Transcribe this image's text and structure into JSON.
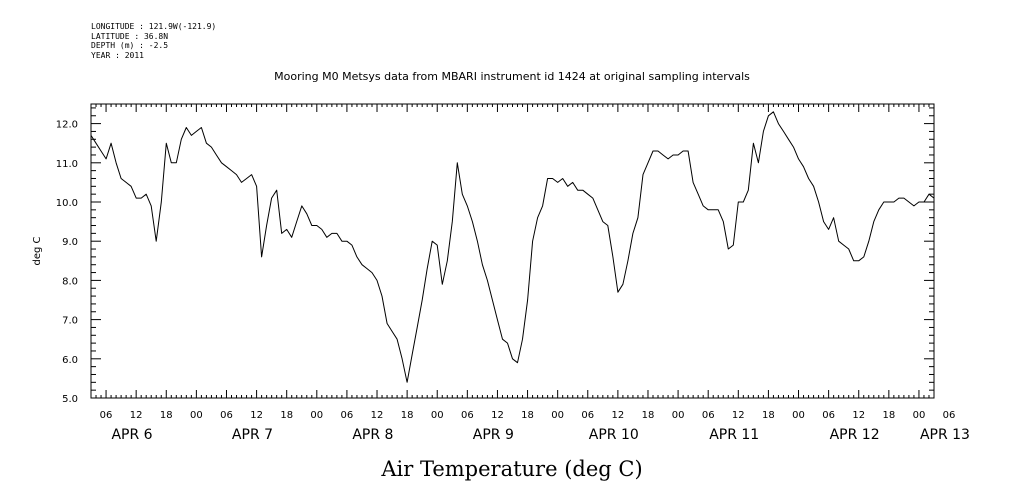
{
  "header": {
    "longitude": "LONGITUDE : 121.9W(-121.9)",
    "latitude": "LATITUDE : 36.8N",
    "depth": "DEPTH (m) : -2.5",
    "year": "YEAR : 2011"
  },
  "chart_data": {
    "type": "line",
    "title": "Mooring M0 Metsys data from MBARI instrument id 1424 at original sampling intervals",
    "ylabel": "deg C",
    "xlabel": "",
    "footer_label": "Air Temperature (deg C)",
    "ylim": [
      5.0,
      12.5
    ],
    "yticks": [
      "5.0",
      "6.0",
      "7.0",
      "8.0",
      "9.0",
      "10.0",
      "11.0",
      "12.0"
    ],
    "x_unit": "hours since APR 6 00:00",
    "xlim": [
      3,
      171
    ],
    "hour_labels": [
      "06",
      "12",
      "18",
      "00",
      "06",
      "12",
      "18",
      "00",
      "06",
      "12",
      "18",
      "00",
      "06",
      "12",
      "18",
      "00",
      "06",
      "12",
      "18",
      "00",
      "06",
      "12",
      "18",
      "00",
      "06",
      "12",
      "18",
      "00",
      "06"
    ],
    "day_labels": [
      {
        "text": "APR  6",
        "hour": 6
      },
      {
        "text": "APR  7",
        "hour": 30
      },
      {
        "text": "APR  8",
        "hour": 54
      },
      {
        "text": "APR  9",
        "hour": 78
      },
      {
        "text": "APR 10",
        "hour": 102
      },
      {
        "text": "APR 11",
        "hour": 126
      },
      {
        "text": "APR 12",
        "hour": 150
      },
      {
        "text": "APR 13",
        "hour": 168
      }
    ],
    "series": [
      {
        "x": [
          3,
          4,
          5,
          6,
          7,
          8,
          9,
          10,
          11,
          12,
          13,
          14,
          15,
          16,
          17,
          18,
          19,
          20,
          21,
          22,
          23,
          24,
          25,
          26,
          27,
          28,
          29,
          30,
          31,
          32,
          33,
          34,
          35,
          36,
          37,
          38,
          39,
          40,
          41,
          42,
          43,
          44,
          45,
          46,
          47,
          48,
          49,
          50,
          51,
          52,
          53,
          54,
          55,
          56,
          57,
          58,
          59,
          60,
          61,
          62,
          63,
          64,
          65,
          66,
          67,
          68,
          69,
          70,
          71,
          72,
          73,
          74,
          75,
          76,
          77,
          78,
          79,
          80,
          81,
          82,
          83,
          84,
          85,
          86,
          87,
          88,
          89,
          90,
          91,
          92,
          93,
          94,
          95,
          96,
          97,
          98,
          99,
          100,
          101,
          102,
          103,
          104,
          105,
          106,
          107,
          108,
          109,
          110,
          111,
          112,
          113,
          114,
          115,
          116,
          117,
          118,
          119,
          120,
          121,
          122,
          123,
          124,
          125,
          126,
          127,
          128,
          129,
          130,
          131,
          132,
          133,
          134,
          135,
          136,
          137,
          138,
          139,
          140,
          141,
          142,
          143,
          144,
          145,
          146,
          147,
          148,
          149,
          150,
          151,
          152,
          153,
          154,
          155,
          156,
          157,
          158,
          159,
          160,
          161,
          162,
          163,
          164,
          165,
          166,
          167,
          168,
          169,
          170,
          171
        ],
        "values": [
          11.7,
          11.5,
          11.3,
          11.1,
          11.5,
          11.0,
          10.6,
          10.5,
          10.4,
          10.1,
          10.1,
          10.2,
          9.9,
          9.0,
          10.0,
          11.5,
          11.0,
          11.0,
          11.6,
          11.9,
          11.7,
          11.8,
          11.9,
          11.5,
          11.4,
          11.2,
          11.0,
          10.9,
          10.8,
          10.7,
          10.5,
          10.6,
          10.7,
          10.4,
          8.6,
          9.4,
          10.1,
          10.3,
          9.2,
          9.3,
          9.1,
          9.5,
          9.9,
          9.7,
          9.4,
          9.4,
          9.3,
          9.1,
          9.2,
          9.2,
          9.0,
          9.0,
          8.9,
          8.6,
          8.4,
          8.3,
          8.2,
          8.0,
          7.6,
          6.9,
          6.7,
          6.5,
          6.0,
          5.4,
          6.1,
          6.8,
          7.5,
          8.3,
          9.0,
          8.9,
          7.9,
          8.5,
          9.5,
          11.0,
          10.2,
          9.9,
          9.5,
          9.0,
          8.4,
          8.0,
          7.5,
          7.0,
          6.5,
          6.4,
          6.0,
          5.9,
          6.5,
          7.5,
          9.0,
          9.6,
          9.9,
          10.6,
          10.6,
          10.5,
          10.6,
          10.4,
          10.5,
          10.3,
          10.3,
          10.2,
          10.1,
          9.8,
          9.5,
          9.4,
          8.6,
          7.7,
          7.9,
          8.5,
          9.2,
          9.6,
          10.7,
          11.0,
          11.3,
          11.3,
          11.2,
          11.1,
          11.2,
          11.2,
          11.3,
          11.3,
          10.5,
          10.2,
          9.9,
          9.8,
          9.8,
          9.8,
          9.5,
          8.8,
          8.9,
          10.0,
          10.0,
          10.3,
          11.5,
          11.0,
          11.8,
          12.2,
          12.3,
          12.0,
          11.8,
          11.6,
          11.4,
          11.1,
          10.9,
          10.6,
          10.4,
          10.0,
          9.5,
          9.3,
          9.6,
          9.0,
          8.9,
          8.8,
          8.5,
          8.5,
          8.6,
          9.0,
          9.5,
          9.8,
          10.0,
          10.0,
          10.0,
          10.1,
          10.1,
          10.0,
          9.9,
          10.0,
          10.0,
          10.2,
          10.1
        ]
      }
    ]
  }
}
